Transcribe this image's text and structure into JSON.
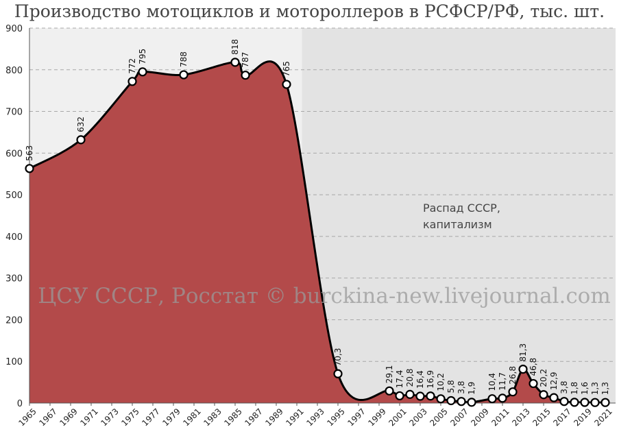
{
  "chart_data": {
    "type": "area",
    "title": "Производство мотоциклов и мотороллеров в РСФСР/РФ, тыс. шт.",
    "xlabel": "",
    "ylabel": "",
    "ylim": [
      0,
      900
    ],
    "yticks": [
      0,
      100,
      200,
      300,
      400,
      500,
      600,
      700,
      800,
      900
    ],
    "xlim": [
      1965,
      2022
    ],
    "xticks": [
      1965,
      1967,
      1969,
      1971,
      1973,
      1975,
      1977,
      1979,
      1981,
      1983,
      1985,
      1987,
      1989,
      1991,
      1993,
      1995,
      1997,
      1999,
      2001,
      2003,
      2005,
      2007,
      2009,
      2011,
      2013,
      2015,
      2017,
      2019,
      2021
    ],
    "grid": true,
    "series": [
      {
        "color": "#b34a4a",
        "points": [
          {
            "x": 1965,
            "y": 563,
            "label": "563"
          },
          {
            "x": 1970,
            "y": 632,
            "label": "632"
          },
          {
            "x": 1975,
            "y": 772,
            "label": "772"
          },
          {
            "x": 1976,
            "y": 795,
            "label": "795"
          },
          {
            "x": 1980,
            "y": 788,
            "label": "788"
          },
          {
            "x": 1985,
            "y": 818,
            "label": "818"
          },
          {
            "x": 1986,
            "y": 787,
            "label": "787"
          },
          {
            "x": 1990,
            "y": 765,
            "label": "765"
          },
          {
            "x": 1995,
            "y": 70.3,
            "label": "70,3"
          },
          {
            "x": 2000,
            "y": 29.1,
            "label": "29,1"
          },
          {
            "x": 2001,
            "y": 17.4,
            "label": "17,4"
          },
          {
            "x": 2002,
            "y": 20.8,
            "label": "20,8"
          },
          {
            "x": 2003,
            "y": 16.4,
            "label": "16,4"
          },
          {
            "x": 2004,
            "y": 16.9,
            "label": "16,9"
          },
          {
            "x": 2005,
            "y": 10.2,
            "label": "10,2"
          },
          {
            "x": 2006,
            "y": 5.8,
            "label": "5,8"
          },
          {
            "x": 2007,
            "y": 3.8,
            "label": "3,8"
          },
          {
            "x": 2008,
            "y": 1.9,
            "label": "1,9"
          },
          {
            "x": 2010,
            "y": 10.4,
            "label": "10,4"
          },
          {
            "x": 2011,
            "y": 11.7,
            "label": "11,7"
          },
          {
            "x": 2012,
            "y": 26.8,
            "label": "26,8"
          },
          {
            "x": 2013,
            "y": 81.3,
            "label": "81,3"
          },
          {
            "x": 2014,
            "y": 46.8,
            "label": "46,8"
          },
          {
            "x": 2015,
            "y": 20.2,
            "label": "20,2"
          },
          {
            "x": 2016,
            "y": 12.9,
            "label": "12,9"
          },
          {
            "x": 2017,
            "y": 3.8,
            "label": "3,8"
          },
          {
            "x": 2018,
            "y": 1.8,
            "label": "1,8"
          },
          {
            "x": 2019,
            "y": 1.6,
            "label": "1,6"
          },
          {
            "x": 2020,
            "y": 1.3,
            "label": "1,3"
          },
          {
            "x": 2021,
            "y": 1.3,
            "label": "1,3"
          }
        ]
      }
    ],
    "regions": [
      {
        "from": 1965,
        "to": 1991.5,
        "color": "#f0f0f0"
      },
      {
        "from": 1991.5,
        "to": 2022,
        "color": "#e3e3e3",
        "text": [
          "Распад СССР,",
          "капитализм"
        ]
      }
    ],
    "watermark": "ЦСУ СССР, Росстат © burckina-new.livejournal.com"
  }
}
